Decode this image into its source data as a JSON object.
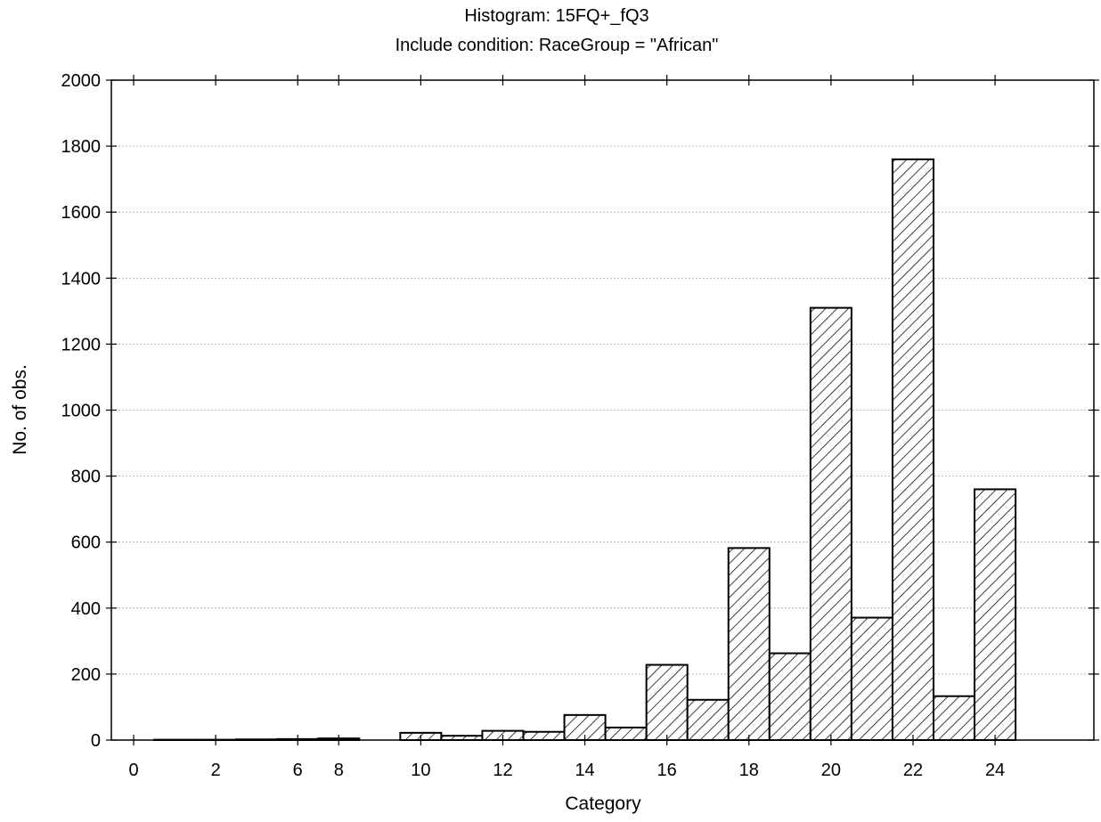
{
  "chart_data": {
    "type": "bar",
    "title": "Histogram: 15FQ+_fQ3",
    "subtitle": "Include condition: RaceGroup = \"African\"",
    "xlabel": "Category",
    "ylabel": "No. of obs.",
    "x_ticks": [
      "0",
      "2",
      "6",
      "8",
      "10",
      "12",
      "14",
      "16",
      "18",
      "20",
      "22",
      "24"
    ],
    "y_ticks": [
      "0",
      "200",
      "400",
      "600",
      "800",
      "1000",
      "1200",
      "1400",
      "1600",
      "1800",
      "2000"
    ],
    "ylim": [
      0,
      2000
    ],
    "grid": true,
    "bar_fill": "hatched",
    "bars": [
      {
        "position": 0,
        "value": 0
      },
      {
        "position": 1,
        "value": 1
      },
      {
        "position": 2,
        "value": 1
      },
      {
        "position": 3,
        "value": 2
      },
      {
        "position": 4,
        "value": 3
      },
      {
        "position": 5,
        "value": 5
      },
      {
        "position": 6,
        "value": 0
      },
      {
        "position": 7,
        "value": 22
      },
      {
        "position": 8,
        "value": 13
      },
      {
        "position": 9,
        "value": 28
      },
      {
        "position": 10,
        "value": 25
      },
      {
        "position": 11,
        "value": 76
      },
      {
        "position": 12,
        "value": 38
      },
      {
        "position": 13,
        "value": 228
      },
      {
        "position": 14,
        "value": 122
      },
      {
        "position": 15,
        "value": 582
      },
      {
        "position": 16,
        "value": 263
      },
      {
        "position": 17,
        "value": 1310
      },
      {
        "position": 18,
        "value": 371
      },
      {
        "position": 19,
        "value": 1760
      },
      {
        "position": 20,
        "value": 133
      },
      {
        "position": 21,
        "value": 760
      }
    ],
    "x_tick_positions": [
      0,
      2,
      4,
      5,
      7,
      9,
      11,
      13,
      15,
      17,
      19,
      21
    ]
  }
}
